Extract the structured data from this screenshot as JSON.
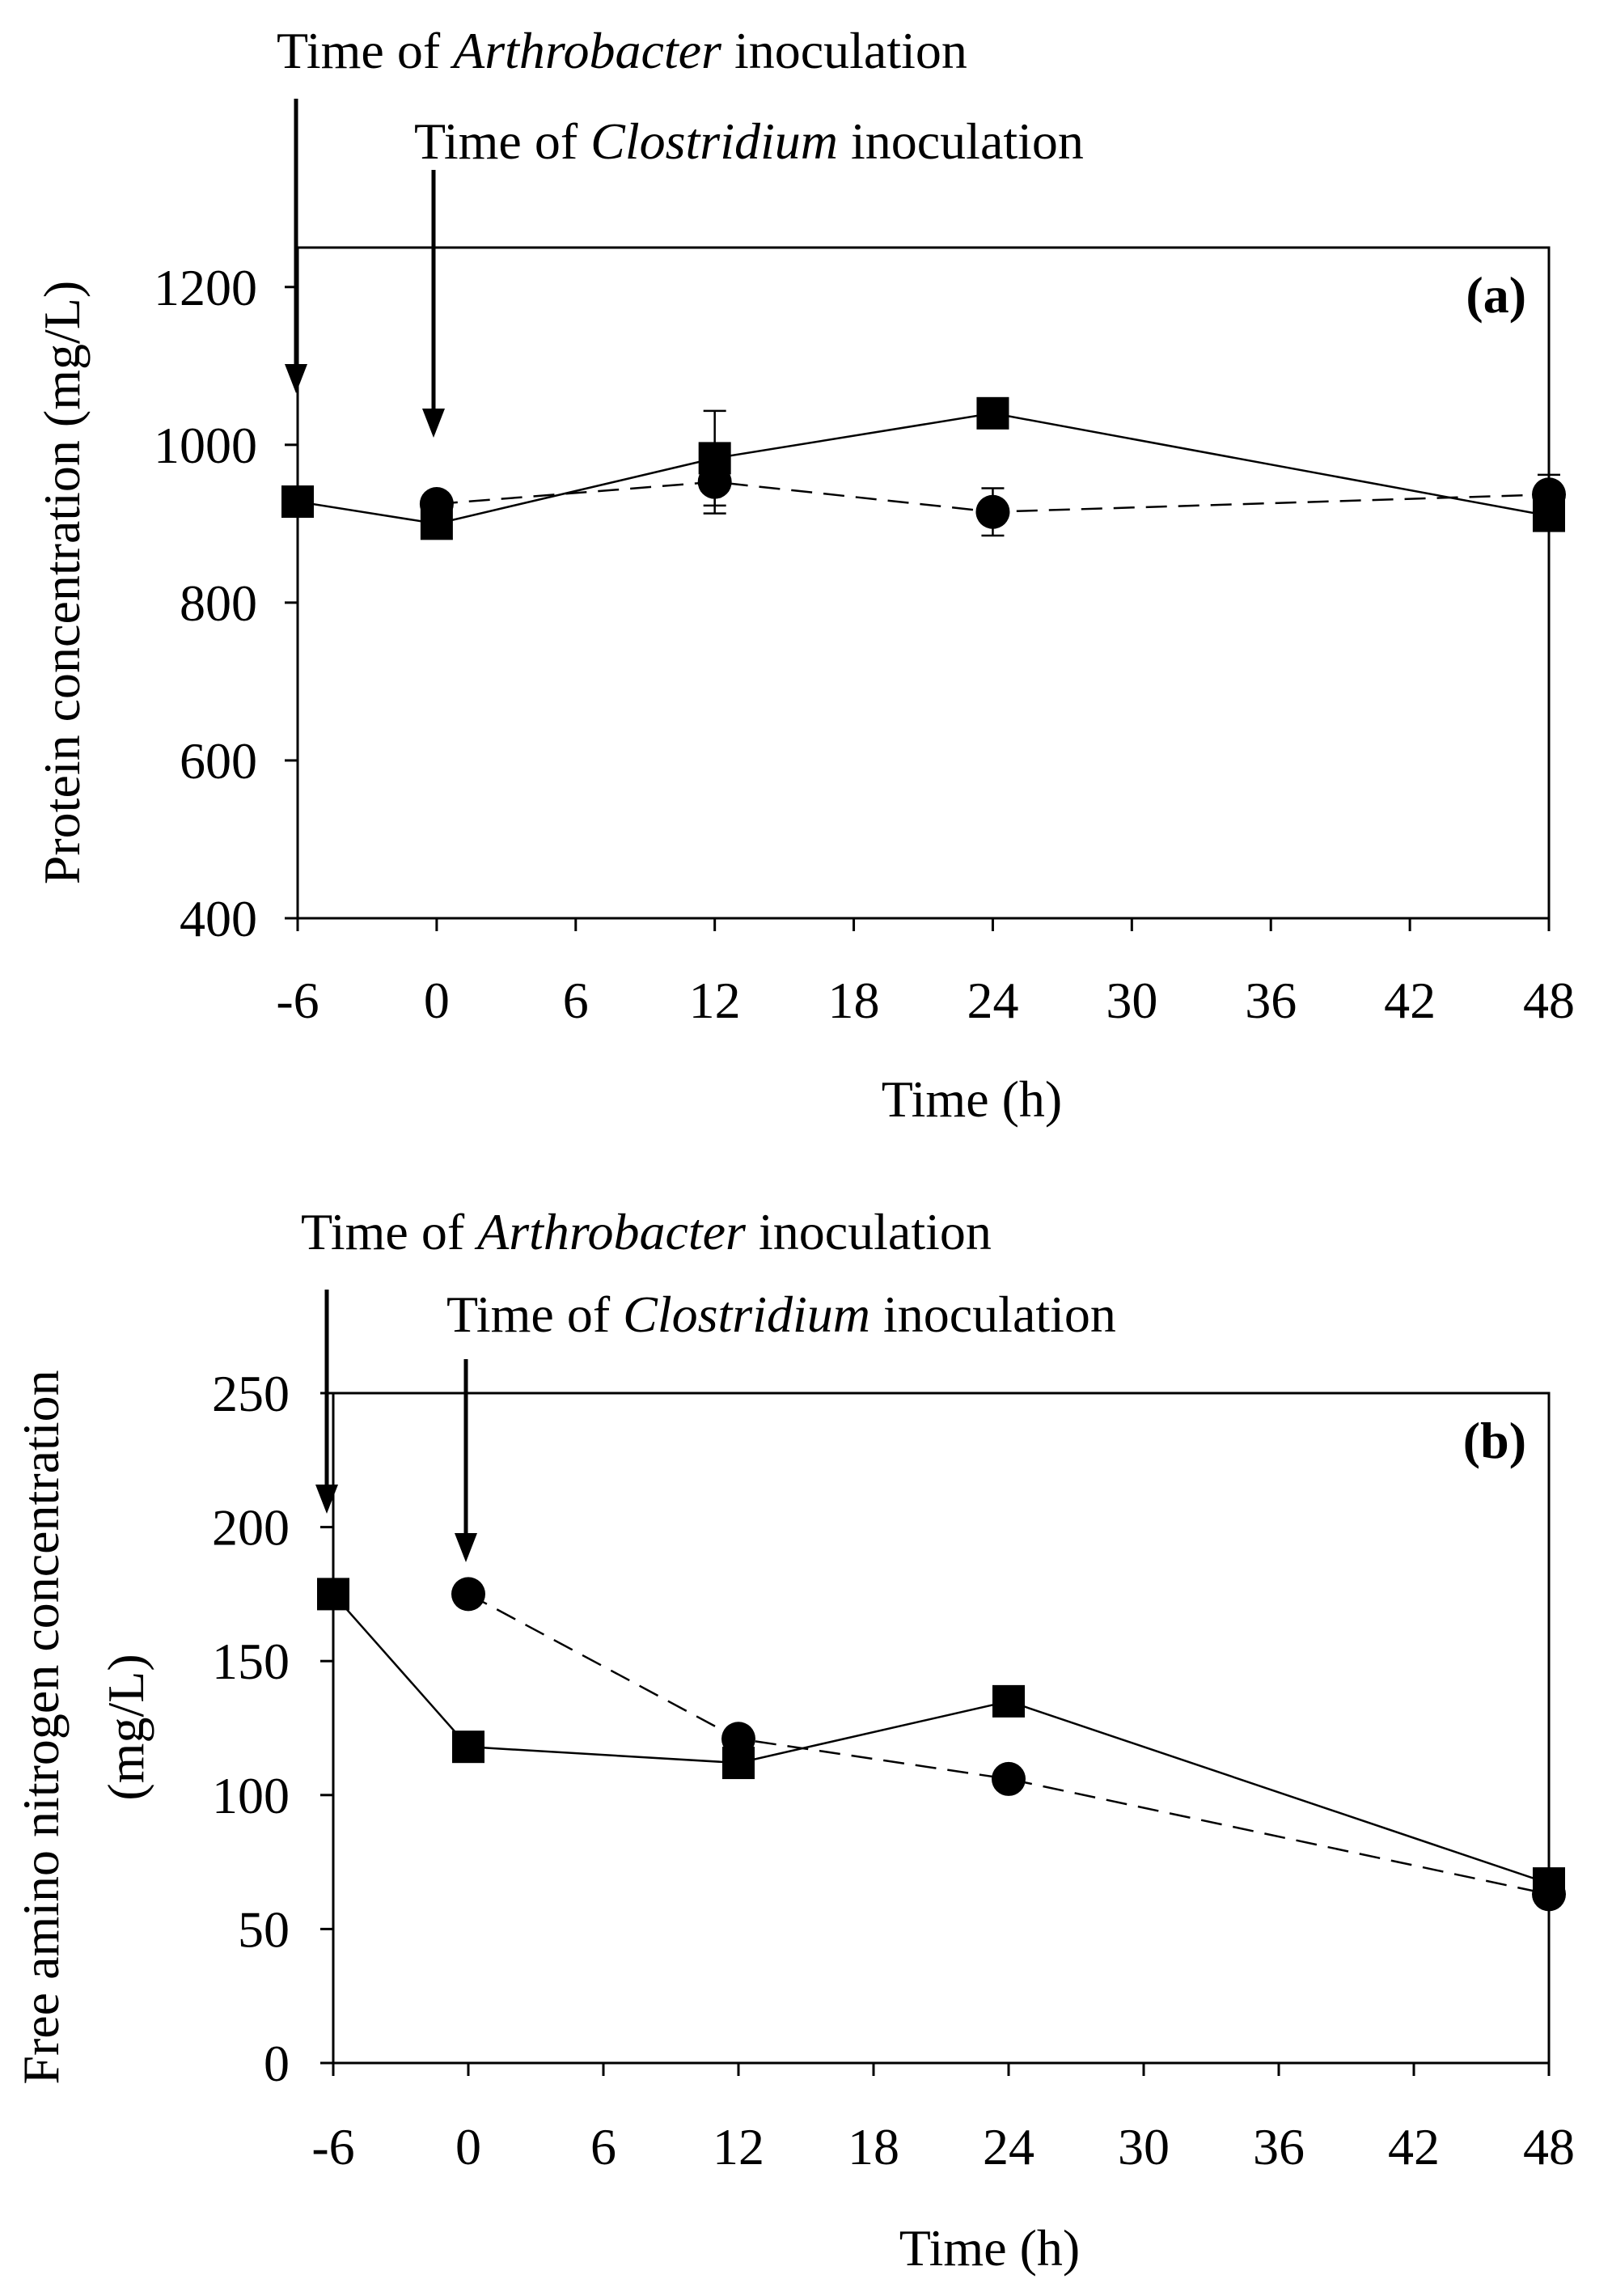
{
  "chart_data": [
    {
      "type": "line",
      "panel_label": "(a)",
      "xlabel": "Time (h)",
      "ylabel": "Protein concentration (mg/L)",
      "xlim": [
        -6,
        48
      ],
      "ylim": [
        400,
        1250
      ],
      "xticks": [
        -6,
        0,
        6,
        12,
        18,
        24,
        30,
        36,
        42,
        48
      ],
      "yticks": [
        400,
        600,
        800,
        1000,
        1200
      ],
      "annotations": [
        {
          "prefix": "Time of ",
          "italic": "Arthrobacter",
          "suffix": " inoculation",
          "x": -6
        },
        {
          "prefix": "Time of ",
          "italic": "Clostridium",
          "suffix": " inoculation",
          "x": 0
        }
      ],
      "series": [
        {
          "name": "squares",
          "marker": "square",
          "line": "solid",
          "x": [
            -6,
            0,
            12,
            24,
            48
          ],
          "y": [
            928,
            900,
            983,
            1040,
            910
          ],
          "err": [
            null,
            null,
            60,
            null,
            null
          ]
        },
        {
          "name": "circles",
          "marker": "circle",
          "line": "dashed",
          "x": [
            0,
            12,
            24,
            48
          ],
          "y": [
            925,
            953,
            915,
            937
          ],
          "err": [
            null,
            40,
            30,
            25
          ]
        }
      ]
    },
    {
      "type": "line",
      "panel_label": "(b)",
      "xlabel": "Time (h)",
      "ylabel_lines": [
        "Free amino nitrogen concentration",
        "(mg/L)"
      ],
      "xlim": [
        -6,
        48
      ],
      "ylim": [
        0,
        250
      ],
      "xticks": [
        -6,
        0,
        6,
        12,
        18,
        24,
        30,
        36,
        42,
        48
      ],
      "yticks": [
        0,
        50,
        100,
        150,
        200,
        250
      ],
      "annotations": [
        {
          "prefix": "Time of ",
          "italic": "Arthrobacter",
          "suffix": " inoculation",
          "x": -6
        },
        {
          "prefix": "Time of ",
          "italic": "Clostridium",
          "suffix": " inoculation",
          "x": 0
        }
      ],
      "series": [
        {
          "name": "squares",
          "marker": "square",
          "line": "solid",
          "x": [
            -6,
            0,
            12,
            24,
            48
          ],
          "y": [
            175,
            118,
            112,
            135,
            67
          ]
        },
        {
          "name": "circles",
          "marker": "circle",
          "line": "dashed",
          "x": [
            0,
            12,
            24,
            48
          ],
          "y": [
            175,
            121,
            106,
            63
          ]
        }
      ]
    }
  ]
}
